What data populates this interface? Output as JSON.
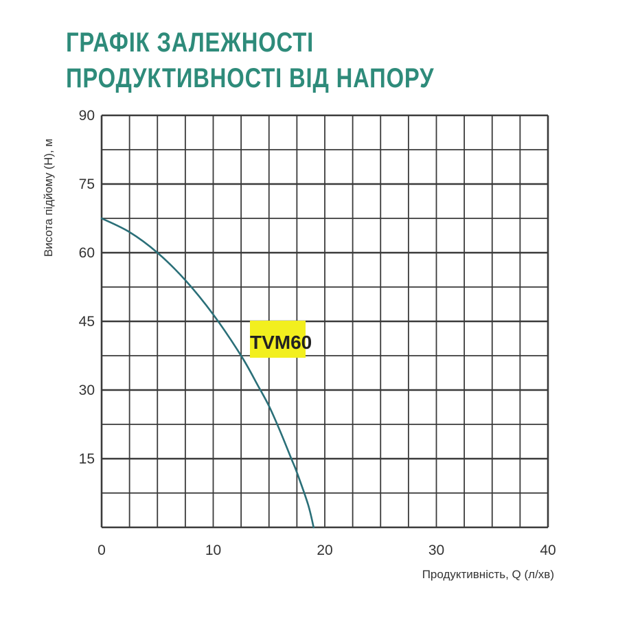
{
  "chart_data": {
    "type": "line",
    "title_lines": [
      "ГРАФІК ЗАЛЕЖНОСТІ",
      "ПРОДУКТИВНОСТІ ВІД НАПОРУ"
    ],
    "xlabel": "Продуктивність, Q (л/хв)",
    "ylabel": "Висота підйому (H), м",
    "xlim": [
      0,
      40
    ],
    "ylim": [
      0,
      90
    ],
    "xticks": [
      0,
      10,
      20,
      30,
      40
    ],
    "yticks": [
      15,
      30,
      45,
      60,
      75,
      90
    ],
    "x_gridlines": [
      0,
      2.5,
      5,
      7.5,
      10,
      12.5,
      15,
      17.5,
      20,
      22.5,
      25,
      27.5,
      30,
      32.5,
      35,
      37.5,
      40
    ],
    "y_gridlines": [
      0,
      7.5,
      15,
      22.5,
      30,
      37.5,
      45,
      52.5,
      60,
      67.5,
      75,
      82.5,
      90
    ],
    "grid": true,
    "series": [
      {
        "name": "TVM60",
        "color": "#2a6f78",
        "highlight": "#f2ef1e",
        "x": [
          0,
          2.5,
          5,
          7.5,
          10,
          12.5,
          14,
          15,
          16,
          17,
          17.5,
          18.5,
          19
        ],
        "y": [
          67.5,
          64.5,
          60,
          54,
          46.5,
          37.5,
          31,
          26.5,
          21,
          15,
          12,
          5,
          0
        ]
      }
    ]
  }
}
